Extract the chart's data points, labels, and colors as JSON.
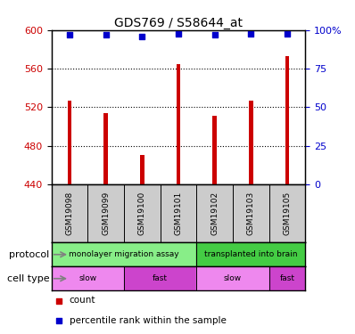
{
  "title": "GDS769 / S58644_at",
  "samples": [
    "GSM19098",
    "GSM19099",
    "GSM19100",
    "GSM19101",
    "GSM19102",
    "GSM19103",
    "GSM19105"
  ],
  "counts": [
    527,
    514,
    470,
    565,
    511,
    527,
    573
  ],
  "percentile_ranks": [
    97,
    97,
    96,
    98,
    97,
    98,
    98
  ],
  "ylim": [
    440,
    600
  ],
  "yticks": [
    440,
    480,
    520,
    560,
    600
  ],
  "right_yticks": [
    0,
    25,
    50,
    75,
    100
  ],
  "right_ylim": [
    0,
    100
  ],
  "bar_color": "#cc0000",
  "dot_color": "#0000cc",
  "bar_width": 0.12,
  "protocol_groups": [
    {
      "label": "monolayer migration assay",
      "start": 0,
      "end": 3,
      "color": "#88ee88"
    },
    {
      "label": "transplanted into brain",
      "start": 4,
      "end": 6,
      "color": "#44cc44"
    }
  ],
  "cell_type_groups": [
    {
      "label": "slow",
      "start": 0,
      "end": 1,
      "color": "#ee88ee"
    },
    {
      "label": "fast",
      "start": 2,
      "end": 3,
      "color": "#cc44cc"
    },
    {
      "label": "slow",
      "start": 4,
      "end": 5,
      "color": "#ee88ee"
    },
    {
      "label": "fast",
      "start": 6,
      "end": 6,
      "color": "#cc44cc"
    }
  ],
  "protocol_label": "protocol",
  "cell_type_label": "cell type",
  "legend_items": [
    {
      "color": "#cc0000",
      "label": "count"
    },
    {
      "color": "#0000cc",
      "label": "percentile rank within the sample"
    }
  ],
  "bg_color": "#ffffff",
  "tick_label_color_left": "#cc0000",
  "tick_label_color_right": "#0000cc",
  "grid_color": "#000000",
  "sample_box_color": "#cccccc",
  "percentile_dot_size": 18
}
